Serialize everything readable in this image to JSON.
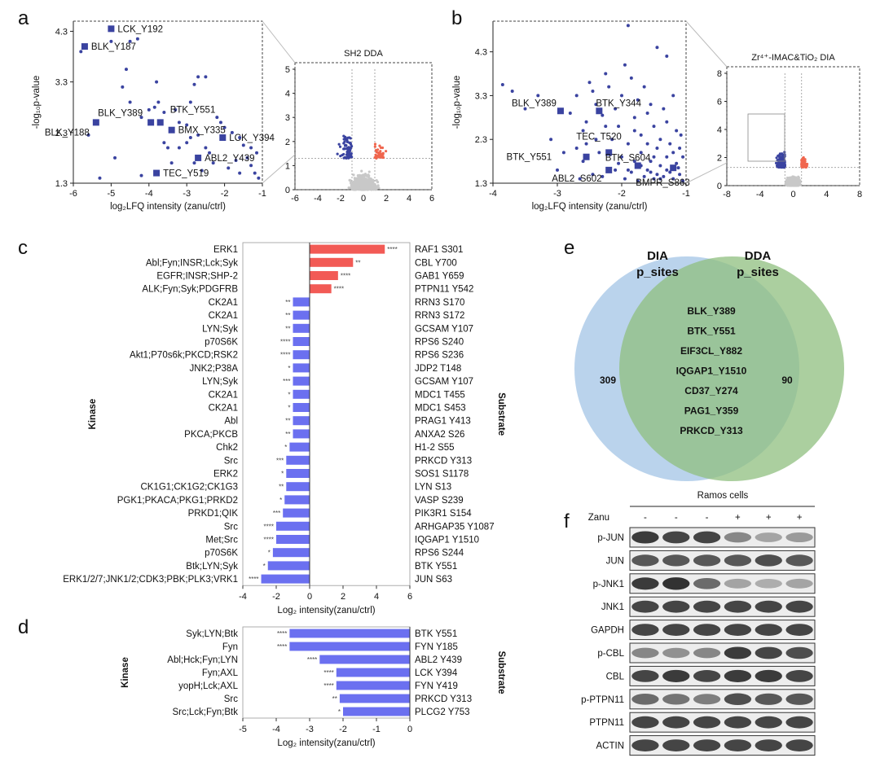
{
  "panels": {
    "a": "a",
    "b": "b",
    "c": "c",
    "d": "d",
    "e": "e",
    "f": "f"
  },
  "colors": {
    "down": "#3a43a0",
    "up": "#f0664e",
    "grey": "#c8c8c8",
    "bar_up": "#f25a55",
    "bar_down": "#6b70f0",
    "dia_circle": "#a9c8e7",
    "dda_circle": "#8fbf7f",
    "dia_text": "#4b8fd1",
    "dda_text": "#5a9a3a"
  },
  "chart_data": [
    {
      "id": "a",
      "type": "scatter",
      "xlabel": "log₂LFQ intensity (zanu/ctrl)",
      "ylabel": "-log₁₀p-value",
      "xlim": [
        -6,
        -1
      ],
      "ylim": [
        1.3,
        4.5
      ],
      "xticks": [
        "-6",
        "-5",
        "-4",
        "-3",
        "-2",
        "-1"
      ],
      "yticks": [
        "1.3",
        "2.3",
        "3.3",
        "4.3"
      ],
      "labeled_points": [
        {
          "label": "LCK_Y192",
          "x": -5.0,
          "y": 4.35
        },
        {
          "label": "BLK_Y187",
          "x": -5.7,
          "y": 4.0
        },
        {
          "label": "BLK_Y389",
          "x": -3.95,
          "y": 2.5
        },
        {
          "label": "BTK_Y551",
          "x": -3.7,
          "y": 2.5
        },
        {
          "label": "BLK_Y188",
          "x": -5.4,
          "y": 2.5
        },
        {
          "label": "BMX_Y335",
          "x": -3.4,
          "y": 2.35
        },
        {
          "label": "LCK_Y394",
          "x": -2.05,
          "y": 2.2
        },
        {
          "label": "ABL2_Y439",
          "x": -2.7,
          "y": 1.8
        },
        {
          "label": "TEC_Y519",
          "x": -3.8,
          "y": 1.5
        }
      ],
      "points": [
        [
          -5.8,
          3.9
        ],
        [
          -5.0,
          4.1
        ],
        [
          -4.6,
          3.55
        ],
        [
          -4.5,
          4.1
        ],
        [
          -4.7,
          3.2
        ],
        [
          -4.3,
          4.15
        ],
        [
          -5.6,
          2.25
        ],
        [
          -4.9,
          1.8
        ],
        [
          -4.5,
          2.9
        ],
        [
          -4.2,
          2.6
        ],
        [
          -4.0,
          2.75
        ],
        [
          -3.85,
          2.8
        ],
        [
          -3.75,
          2.9
        ],
        [
          -3.6,
          2.7
        ],
        [
          -3.3,
          2.75
        ],
        [
          -3.2,
          2.5
        ],
        [
          -3.0,
          2.45
        ],
        [
          -2.9,
          2.9
        ],
        [
          -2.8,
          3.25
        ],
        [
          -2.7,
          3.4
        ],
        [
          -2.5,
          3.4
        ],
        [
          -3.8,
          3.3
        ],
        [
          -3.6,
          2.1
        ],
        [
          -3.5,
          2.0
        ],
        [
          -3.2,
          2.0
        ],
        [
          -3.0,
          2.1
        ],
        [
          -2.9,
          2.2
        ],
        [
          -2.7,
          2.25
        ],
        [
          -2.5,
          2.0
        ],
        [
          -2.4,
          1.9
        ],
        [
          -2.3,
          1.7
        ],
        [
          -2.2,
          2.6
        ],
        [
          -2.1,
          2.5
        ],
        [
          -2.0,
          2.4
        ],
        [
          -1.8,
          2.3
        ],
        [
          -1.6,
          2.2
        ],
        [
          -1.5,
          2.05
        ],
        [
          -1.4,
          1.8
        ],
        [
          -1.3,
          1.65
        ],
        [
          -1.2,
          1.5
        ],
        [
          -1.1,
          1.4
        ],
        [
          -1.9,
          1.6
        ],
        [
          -1.7,
          1.75
        ],
        [
          -2.6,
          1.55
        ],
        [
          -2.8,
          1.7
        ],
        [
          -3.4,
          1.7
        ],
        [
          -4.2,
          1.45
        ],
        [
          -5.3,
          1.4
        ],
        [
          -1.3,
          2.0
        ],
        [
          -1.15,
          1.9
        ],
        [
          -1.6,
          1.5
        ]
      ]
    },
    {
      "id": "a_inset",
      "type": "scatter",
      "title": "SH2 DDA",
      "xlim": [
        -6,
        6
      ],
      "ylim": [
        0,
        5
      ],
      "xticks": [
        "-6",
        "-4",
        "-2",
        "0",
        "2",
        "4",
        "6"
      ],
      "yticks": [
        "0",
        "1",
        "2",
        "3",
        "4",
        "5"
      ]
    },
    {
      "id": "b",
      "type": "scatter",
      "xlabel": "log₂LFQ intensity (zanu/ctrl)",
      "ylabel": "-log₁₀p-value",
      "xlim": [
        -4,
        -1
      ],
      "ylim": [
        1.3,
        5.0
      ],
      "xticks": [
        "-4",
        "-3",
        "-2",
        "-1"
      ],
      "yticks": [
        "1.3",
        "2.3",
        "3.3",
        "4.3"
      ],
      "labeled_points": [
        {
          "label": "BLK_Y389",
          "x": -2.95,
          "y": 2.95
        },
        {
          "label": "BTK_Y344",
          "x": -2.35,
          "y": 2.95
        },
        {
          "label": "BTK_Y551",
          "x": -2.55,
          "y": 1.9
        },
        {
          "label": "TEC_T520",
          "x": -2.2,
          "y": 2.0
        },
        {
          "label": "BTK_S604",
          "x": -1.75,
          "y": 1.7
        },
        {
          "label": "ABL2_S602",
          "x": -2.2,
          "y": 1.6
        },
        {
          "label": "BMPR_S863",
          "x": -1.2,
          "y": 1.65
        }
      ],
      "points": [
        [
          -3.85,
          3.55
        ],
        [
          -3.7,
          3.4
        ],
        [
          -3.5,
          3.0
        ],
        [
          -3.3,
          3.3
        ],
        [
          -3.1,
          2.3
        ],
        [
          -2.8,
          2.9
        ],
        [
          -2.7,
          3.3
        ],
        [
          -2.6,
          2.5
        ],
        [
          -2.55,
          2.7
        ],
        [
          -2.5,
          3.6
        ],
        [
          -2.45,
          3.4
        ],
        [
          -2.4,
          3.1
        ],
        [
          -2.3,
          2.85
        ],
        [
          -2.25,
          3.8
        ],
        [
          -2.2,
          3.5
        ],
        [
          -2.1,
          3.0
        ],
        [
          -2.05,
          2.6
        ],
        [
          -2.0,
          3.3
        ],
        [
          -1.95,
          4.0
        ],
        [
          -1.9,
          4.9
        ],
        [
          -1.85,
          3.7
        ],
        [
          -1.8,
          2.8
        ],
        [
          -1.75,
          3.2
        ],
        [
          -1.7,
          2.4
        ],
        [
          -1.65,
          3.5
        ],
        [
          -1.6,
          2.9
        ],
        [
          -1.55,
          3.1
        ],
        [
          -1.5,
          2.6
        ],
        [
          -1.45,
          4.4
        ],
        [
          -1.4,
          2.3
        ],
        [
          -1.35,
          3.0
        ],
        [
          -1.3,
          2.7
        ],
        [
          -1.25,
          2.2
        ],
        [
          -1.2,
          3.3
        ],
        [
          -1.15,
          2.5
        ],
        [
          -1.1,
          2.1
        ],
        [
          -1.05,
          1.9
        ],
        [
          -1.3,
          4.2
        ],
        [
          -2.7,
          2.1
        ],
        [
          -2.6,
          1.8
        ],
        [
          -2.35,
          2.0
        ],
        [
          -2.15,
          2.3
        ],
        [
          -2.0,
          1.9
        ],
        [
          -1.9,
          2.2
        ],
        [
          -1.8,
          1.8
        ],
        [
          -1.7,
          2.0
        ],
        [
          -1.6,
          1.6
        ],
        [
          -1.5,
          1.9
        ],
        [
          -1.45,
          1.5
        ],
        [
          -1.4,
          1.7
        ],
        [
          -1.35,
          1.45
        ],
        [
          -1.3,
          1.9
        ],
        [
          -1.25,
          1.55
        ],
        [
          -1.2,
          1.4
        ],
        [
          -1.15,
          1.75
        ],
        [
          -1.1,
          1.5
        ],
        [
          -1.05,
          1.35
        ],
        [
          -2.45,
          1.5
        ],
        [
          -2.3,
          1.45
        ],
        [
          -2.1,
          1.6
        ],
        [
          -1.95,
          1.4
        ],
        [
          -1.85,
          1.55
        ],
        [
          -1.75,
          1.35
        ],
        [
          -1.65,
          1.45
        ],
        [
          -1.55,
          1.8
        ],
        [
          -1.5,
          1.4
        ],
        [
          -2.9,
          2.0
        ],
        [
          -3.0,
          1.6
        ],
        [
          -2.65,
          1.4
        ],
        [
          -2.05,
          1.75
        ],
        [
          -1.9,
          1.6
        ],
        [
          -1.8,
          2.5
        ],
        [
          -1.7,
          1.7
        ],
        [
          -1.6,
          2.2
        ],
        [
          -1.55,
          1.55
        ],
        [
          -1.45,
          2.1
        ],
        [
          -1.4,
          1.4
        ],
        [
          -1.3,
          1.6
        ],
        [
          -1.2,
          2.0
        ],
        [
          -1.12,
          1.65
        ],
        [
          -1.08,
          2.4
        ],
        [
          -2.25,
          2.6
        ],
        [
          -2.4,
          2.3
        ],
        [
          -2.55,
          2.2
        ]
      ]
    },
    {
      "id": "b_inset",
      "type": "scatter",
      "title": "Zr⁴⁺-IMAC&TiO₂ DIA",
      "xlim": [
        -8,
        8
      ],
      "ylim": [
        0,
        8
      ],
      "xticks": [
        "-8",
        "-4",
        "0",
        "4",
        "8"
      ],
      "yticks": [
        "0",
        "2",
        "4",
        "6",
        "8"
      ]
    },
    {
      "id": "c",
      "type": "bar",
      "xlabel": "Log₂ intensity(zanu/ctrl)",
      "left_axis_title": "Kinase",
      "right_axis_title": "Substrate",
      "xlim": [
        -4,
        6
      ],
      "xticks": [
        "-4",
        "-2",
        "0",
        "2",
        "4",
        "6"
      ],
      "kinases": [
        "ERK1",
        "Abl;Fyn;INSR;Lck;Syk",
        "EGFR;INSR;SHP-2",
        "ALK;Fyn;Syk;PDGFRB",
        "CK2A1",
        "CK2A1",
        "LYN;Syk",
        "p70S6K",
        "Akt1;P70s6k;PKCD;RSK2",
        "JNK2;P38A",
        "LYN;Syk",
        "CK2A1",
        "CK2A1",
        "Abl",
        "PKCA;PKCB",
        "Chk2",
        "Src",
        "ERK2",
        "CK1G1;CK1G2;CK1G3",
        "PGK1;PKACA;PKG1;PRKD2",
        "PRKD1;QIK",
        "Src",
        "Met;Src",
        "p70S6K",
        "Btk;LYN;Syk",
        "ERK1/2/7;JNK1/2;CDK3;PBK;PLK3;VRK1"
      ],
      "substrates": [
        "RAF1 S301",
        "CBL Y700",
        "GAB1 Y659",
        "PTPN11 Y542",
        "RRN3 S170",
        "RRN3 S172",
        "GCSAM Y107",
        "RPS6 S240",
        "RPS6 S236",
        "JDP2 T148",
        "GCSAM Y107",
        "MDC1 T455",
        "MDC1 S453",
        "PRAG1 Y413",
        "ANXA2 S26",
        "H1-2 S55",
        "PRKCD Y313",
        "SOS1 S1178",
        "LYN S13",
        "VASP S239",
        "PIK3R1 S154",
        "ARHGAP35 Y1087",
        "IQGAP1 Y1510",
        "RPS6 S244",
        "BTK Y551",
        "JUN S63"
      ],
      "values": [
        4.5,
        2.6,
        1.7,
        1.3,
        -1.0,
        -1.0,
        -1.0,
        -1.0,
        -1.0,
        -1.0,
        -1.0,
        -1.0,
        -1.0,
        -1.0,
        -1.0,
        -1.2,
        -1.4,
        -1.4,
        -1.4,
        -1.5,
        -1.6,
        -2.0,
        -2.0,
        -2.2,
        -2.5,
        -2.9
      ],
      "stars": [
        "****",
        "**",
        "****",
        "****",
        "**",
        "**",
        "**",
        "****",
        "****",
        "*",
        "***",
        "*",
        "*",
        "**",
        "**",
        "*",
        "***",
        "*",
        "**",
        "*",
        "***",
        "****",
        "****",
        "*",
        "*",
        "****"
      ]
    },
    {
      "id": "d",
      "type": "bar",
      "xlabel": "Log₂ intensity(zanu/ctrl)",
      "left_axis_title": "Kinase",
      "right_axis_title": "Substrate",
      "xlim": [
        -5,
        0
      ],
      "xticks": [
        "-5",
        "-4",
        "-3",
        "-2",
        "-1",
        "0"
      ],
      "kinases": [
        "Syk;LYN;Btk",
        "Fyn",
        "Abl;Hck;Fyn;LYN",
        "Fyn;AXL",
        "yopH;Lck;AXL",
        "Src",
        "Src;Lck;Fyn;Btk"
      ],
      "substrates": [
        "BTK Y551",
        "FYN Y185",
        "ABL2 Y439",
        "LCK Y394",
        "FYN Y419",
        "PRKCD Y313",
        "PLCG2 Y753"
      ],
      "values": [
        -3.6,
        -3.6,
        -2.7,
        -2.2,
        -2.2,
        -2.1,
        -2.0
      ],
      "stars": [
        "****",
        "****",
        "****",
        "****",
        "****",
        "**",
        "*"
      ]
    }
  ],
  "venn": {
    "left_title_1": "DIA",
    "left_title_2": "p_sites",
    "right_title_1": "DDA",
    "right_title_2": "p_sites",
    "left_only": "309",
    "right_only": "90",
    "shared": [
      "BLK_Y389",
      "BTK_Y551",
      "EIF3CL_Y882",
      "IQGAP1_Y1510",
      "CD37_Y274",
      "PAG1_Y359",
      "PRKCD_Y313"
    ]
  },
  "blot": {
    "title": "Ramos cells",
    "treatment_label": "Zanu",
    "lanes": [
      "-",
      "-",
      "-",
      "+",
      "+",
      "+"
    ],
    "rows": [
      {
        "name": "p-JUN",
        "intensity": [
          0.85,
          0.8,
          0.8,
          0.45,
          0.3,
          0.35
        ]
      },
      {
        "name": "JUN",
        "intensity": [
          0.7,
          0.7,
          0.7,
          0.7,
          0.75,
          0.7
        ]
      },
      {
        "name": "p-JNK1",
        "intensity": [
          0.85,
          0.9,
          0.6,
          0.3,
          0.25,
          0.3
        ]
      },
      {
        "name": "JNK1",
        "intensity": [
          0.8,
          0.8,
          0.8,
          0.8,
          0.8,
          0.8
        ]
      },
      {
        "name": "GAPDH",
        "intensity": [
          0.8,
          0.8,
          0.8,
          0.8,
          0.8,
          0.8
        ]
      },
      {
        "name": "p-CBL",
        "intensity": [
          0.45,
          0.4,
          0.45,
          0.85,
          0.8,
          0.75
        ]
      },
      {
        "name": "CBL",
        "intensity": [
          0.8,
          0.85,
          0.8,
          0.85,
          0.85,
          0.8
        ]
      },
      {
        "name": "p-PTPN11",
        "intensity": [
          0.6,
          0.55,
          0.5,
          0.75,
          0.7,
          0.7
        ]
      },
      {
        "name": "PTPN11",
        "intensity": [
          0.8,
          0.8,
          0.8,
          0.8,
          0.8,
          0.8
        ]
      },
      {
        "name": "ACTIN",
        "intensity": [
          0.8,
          0.8,
          0.8,
          0.8,
          0.8,
          0.8
        ]
      }
    ]
  }
}
